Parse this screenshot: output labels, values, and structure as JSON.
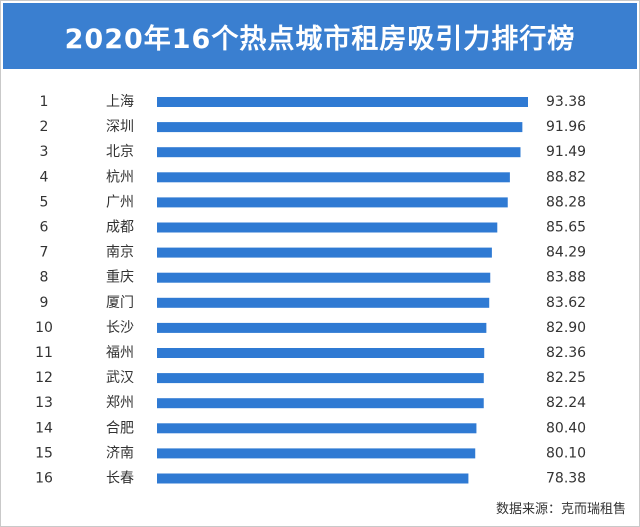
{
  "colors": {
    "title_bg": "#3a7fd0",
    "title_text": "#ffffff",
    "bar": "#2f7ad3",
    "text": "#333333"
  },
  "chart_data": {
    "type": "bar",
    "orientation": "horizontal",
    "title": "2020年16个热点城市租房吸引力排行榜",
    "source": "数据来源：克而瑞租售",
    "ranks": [
      "1",
      "2",
      "3",
      "4",
      "5",
      "6",
      "7",
      "8",
      "9",
      "10",
      "11",
      "12",
      "13",
      "14",
      "15",
      "16"
    ],
    "categories": [
      "上海",
      "深圳",
      "北京",
      "杭州",
      "广州",
      "成都",
      "南京",
      "重庆",
      "厦门",
      "长沙",
      "福州",
      "武汉",
      "郑州",
      "合肥",
      "济南",
      "长春"
    ],
    "values": [
      93.38,
      91.96,
      91.49,
      88.82,
      88.28,
      85.65,
      84.29,
      83.88,
      83.62,
      82.9,
      82.36,
      82.25,
      82.24,
      80.4,
      80.1,
      78.38
    ],
    "value_labels": [
      "93.38",
      "91.96",
      "91.49",
      "88.82",
      "88.28",
      "85.65",
      "84.29",
      "83.88",
      "83.62",
      "82.90",
      "82.36",
      "82.25",
      "82.24",
      "80.40",
      "80.10",
      "78.38"
    ],
    "xlim": [
      0,
      93.38
    ]
  }
}
